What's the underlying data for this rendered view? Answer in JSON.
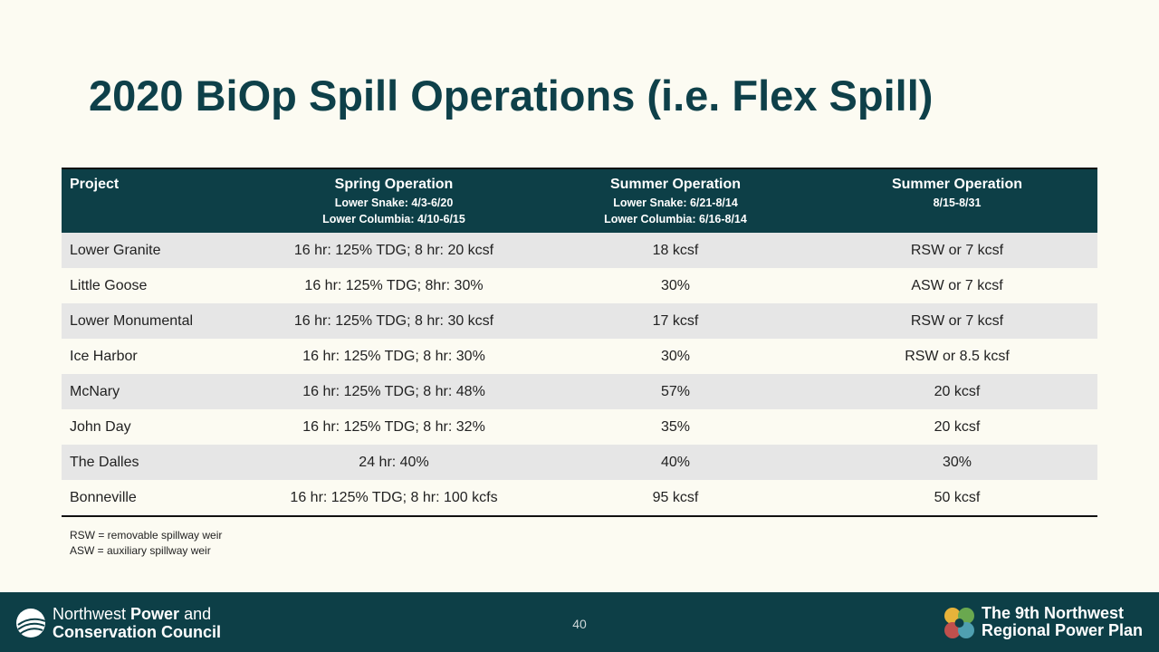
{
  "title": "2020 BiOp Spill Operations (i.e. Flex Spill)",
  "table": {
    "headers": [
      {
        "title": "Project"
      },
      {
        "title": "Spring Operation",
        "lines": [
          "Lower Snake: 4/3-6/20",
          "Lower Columbia: 4/10-6/15"
        ]
      },
      {
        "title": "Summer Operation",
        "lines": [
          "Lower Snake: 6/21-8/14",
          "Lower Columbia: 6/16-8/14"
        ]
      },
      {
        "title": "Summer Operation",
        "lines": [
          "8/15-8/31"
        ]
      }
    ],
    "rows": [
      [
        "Lower Granite",
        "16 hr: 125% TDG; 8 hr: 20 kcsf",
        "18 kcsf",
        "RSW or 7 kcsf"
      ],
      [
        "Little Goose",
        "16 hr: 125% TDG; 8hr: 30%",
        "30%",
        "ASW or 7 kcsf"
      ],
      [
        "Lower Monumental",
        "16 hr: 125% TDG; 8 hr: 30 kcsf",
        "17 kcsf",
        "RSW or 7 kcsf"
      ],
      [
        "Ice Harbor",
        "16 hr: 125% TDG; 8 hr: 30%",
        "30%",
        "RSW or 8.5 kcsf"
      ],
      [
        "McNary",
        "16 hr: 125% TDG; 8 hr: 48%",
        "57%",
        "20 kcsf"
      ],
      [
        "John Day",
        "16 hr: 125% TDG; 8 hr: 32%",
        "35%",
        "20 kcsf"
      ],
      [
        "The Dalles",
        "24 hr: 40%",
        "40%",
        "30%"
      ],
      [
        "Bonneville",
        "16 hr: 125% TDG; 8 hr: 100 kcfs",
        "95 kcsf",
        "50 kcsf"
      ]
    ]
  },
  "notes": [
    "RSW = removable spillway weir",
    "ASW = auxiliary spillway weir"
  ],
  "footer": {
    "org": {
      "line1": [
        "Northwest",
        "Power",
        "and"
      ],
      "line2": "Conservation Council"
    },
    "page_number": "40",
    "plan": [
      "The 9th Northwest",
      "Regional Power Plan"
    ]
  }
}
